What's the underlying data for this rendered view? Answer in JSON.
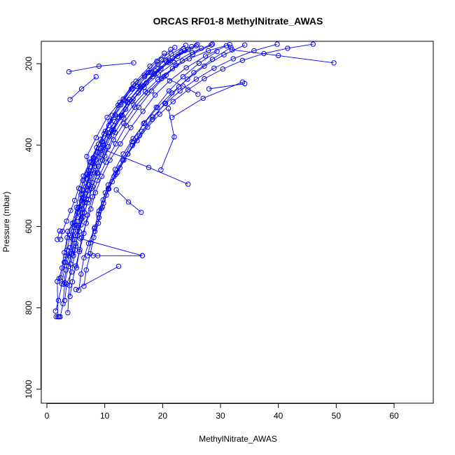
{
  "chart_data": {
    "type": "line",
    "title": "ORCAS RF01-8 MethylNitrate_AWAS",
    "xlabel": "MethylNitrate_AWAS",
    "ylabel": "Pressure (mbar)",
    "xlim": [
      0,
      66
    ],
    "ylim": [
      1037,
      150
    ],
    "y_reversed": true,
    "x_ticks": [
      0,
      10,
      20,
      30,
      40,
      50,
      60
    ],
    "y_ticks": [
      200,
      400,
      600,
      800,
      1000
    ],
    "grid": false,
    "legend": "none",
    "colors": {
      "series": "#0000ff",
      "axis": "#000000",
      "background": "#ffffff"
    },
    "series": [
      {
        "x": [
          1.9,
          1.8,
          2.4,
          3.3,
          3.6,
          5.2,
          5.9,
          7.2,
          6.9,
          8.5,
          10.4,
          12.6,
          14.9,
          17.5,
          19.8,
          22.1
        ],
        "y": [
          822,
          735,
          726,
          672,
          612,
          578,
          521,
          462,
          428,
          382,
          332,
          295,
          250,
          222,
          190,
          160
        ]
      },
      {
        "x": [
          2.3,
          2.8,
          3.1,
          4.2,
          4.7,
          5.6,
          6.2,
          7.6,
          8.9,
          10.7,
          12.3,
          14.8,
          16.9,
          19.2,
          21.5,
          24.0
        ],
        "y": [
          822,
          790,
          738,
          668,
          603,
          552,
          487,
          442,
          398,
          352,
          302,
          262,
          232,
          202,
          176,
          155
        ]
      },
      {
        "x": [
          3.6,
          3.9,
          4.1,
          5.0,
          5.5,
          6.3,
          7.4,
          8.1,
          9.6,
          11.7,
          13.9,
          16.1,
          18.4,
          20.7,
          23.2,
          26.0
        ],
        "y": [
          812,
          745,
          692,
          648,
          598,
          531,
          476,
          432,
          392,
          342,
          296,
          256,
          226,
          196,
          171,
          153
        ]
      },
      {
        "x": [
          1.5,
          2.0,
          2.6,
          3.2,
          4.0,
          4.6,
          5.4,
          6.6,
          7.7,
          8.8,
          9.9,
          11.3,
          13.2,
          15.4,
          17.8,
          20.3
        ],
        "y": [
          808,
          782,
          741,
          688,
          652,
          611,
          564,
          518,
          463,
          418,
          372,
          327,
          287,
          243,
          206,
          174
        ]
      },
      {
        "x": [
          3.1,
          3.4,
          4.3,
          4.9,
          5.3,
          6.0,
          6.5,
          7.3,
          8.3,
          9.7,
          11.5,
          13.6,
          15.8,
          18.3,
          21.0,
          23.8
        ],
        "y": [
          782,
          742,
          712,
          658,
          622,
          582,
          542,
          497,
          452,
          407,
          362,
          312,
          272,
          232,
          197,
          168
        ]
      },
      {
        "x": [
          2.1,
          2.6,
          3.0,
          3.5,
          4.4,
          5.1,
          5.8,
          6.9,
          8.0,
          9.3,
          10.9,
          12.8,
          14.6,
          16.8,
          19.0,
          21.4
        ],
        "y": [
          728,
          702,
          664,
          627,
          592,
          553,
          508,
          472,
          431,
          386,
          341,
          301,
          262,
          228,
          194,
          165
        ]
      },
      {
        "x": [
          4.0,
          4.4,
          5.0,
          5.7,
          6.4,
          7.0,
          7.9,
          8.7,
          10.2,
          11.9,
          13.7,
          15.9,
          18.1,
          20.6,
          23.4,
          26.7
        ],
        "y": [
          772,
          736,
          697,
          657,
          617,
          572,
          527,
          487,
          442,
          397,
          352,
          307,
          267,
          228,
          193,
          162
        ]
      },
      {
        "x": [
          2.9,
          3.3,
          3.8,
          4.5,
          5.2,
          6.1,
          7.1,
          8.2,
          9.4,
          10.8,
          12.5,
          14.3,
          16.4,
          18.8,
          21.7,
          25.0
        ],
        "y": [
          742,
          707,
          672,
          632,
          597,
          557,
          512,
          468,
          423,
          378,
          333,
          288,
          253,
          218,
          186,
          158
        ]
      },
      {
        "x": [
          5.5,
          5.9,
          6.4,
          7.2,
          8.3,
          9.0,
          10.1,
          11.6,
          13.1,
          14.7,
          16.7,
          18.9,
          21.1,
          23.5,
          26.3,
          29.4
        ],
        "y": [
          757,
          717,
          677,
          642,
          602,
          562,
          517,
          477,
          437,
          392,
          347,
          307,
          267,
          232,
          199,
          170
        ]
      },
      {
        "x": [
          3.8,
          4.3,
          4.8,
          5.4,
          6.1,
          6.8,
          7.8,
          8.9,
          10.0,
          11.4,
          13.0,
          14.9,
          17.2,
          19.7,
          22.6,
          25.8
        ],
        "y": [
          698,
          667,
          632,
          602,
          567,
          532,
          492,
          452,
          412,
          367,
          327,
          287,
          247,
          212,
          182,
          156
        ]
      },
      {
        "x": [
          6.4,
          6.8,
          7.5,
          8.1,
          8.9,
          9.6,
          10.6,
          12.2,
          14.0,
          16.0,
          18.2,
          20.4,
          22.8,
          25.4,
          28.6,
          31.8
        ],
        "y": [
          747,
          707,
          667,
          627,
          592,
          552,
          507,
          467,
          422,
          377,
          337,
          297,
          257,
          222,
          189,
          160
        ]
      },
      {
        "x": [
          2.4,
          2.7,
          3.4,
          4.1,
          4.8,
          5.5,
          6.3,
          7.4,
          8.6,
          10.1,
          11.8,
          13.5,
          15.6,
          17.9,
          20.5,
          23.6
        ],
        "y": [
          632,
          612,
          587,
          561,
          536,
          506,
          476,
          441,
          406,
          366,
          326,
          291,
          256,
          221,
          191,
          163
        ]
      },
      {
        "x": [
          4.6,
          5.0,
          5.6,
          6.2,
          7.0,
          7.7,
          8.8,
          10.0,
          11.5,
          13.3,
          15.2,
          17.4,
          19.8,
          22.3,
          25.2,
          28.4
        ],
        "y": [
          672,
          642,
          612,
          577,
          542,
          507,
          467,
          427,
          387,
          347,
          307,
          272,
          237,
          204,
          177,
          154
        ]
      },
      {
        "x": [
          5.1,
          5.6,
          6.0,
          6.8,
          7.6,
          8.4,
          9.5,
          10.9,
          12.7,
          14.5,
          16.6,
          18.7,
          21.2,
          24.1,
          27.4,
          31.0
        ],
        "y": [
          702,
          662,
          627,
          592,
          557,
          517,
          477,
          437,
          397,
          357,
          317,
          277,
          242,
          210,
          181,
          156
        ]
      },
      {
        "x": [
          3.0,
          3.5,
          4.0,
          4.7,
          5.4,
          6.2,
          7.0,
          8.0,
          9.3,
          10.6,
          12.2,
          14.0,
          16.2,
          18.6,
          21.3,
          24.4
        ],
        "y": [
          688,
          658,
          622,
          590,
          555,
          520,
          484,
          446,
          408,
          370,
          331,
          294,
          258,
          224,
          193,
          165
        ]
      },
      {
        "x": [
          7.0,
          7.6,
          8.2,
          8.9,
          9.7,
          10.6,
          11.8,
          13.2,
          14.9,
          16.9,
          19.1,
          21.6,
          24.3,
          27.2,
          30.6,
          34.2
        ],
        "y": [
          672,
          640,
          605,
          570,
          535,
          498,
          460,
          422,
          384,
          345,
          308,
          272,
          238,
          206,
          178,
          154
        ]
      },
      {
        "x": [
          4.2,
          4.9,
          5.3,
          6.0,
          6.7,
          7.5,
          8.5,
          9.8,
          11.2,
          12.8,
          14.7,
          16.8,
          19.3,
          22.0,
          25.1,
          28.6
        ],
        "y": [
          627,
          597,
          567,
          537,
          503,
          470,
          436,
          400,
          364,
          327,
          292,
          258,
          226,
          197,
          172,
          152
        ]
      },
      {
        "x": [
          8.3,
          9.0,
          9.8,
          10.7,
          11.9,
          13.3,
          14.8,
          16.4,
          18.3,
          20.5,
          23.0,
          25.8,
          28.9,
          32.2,
          35.8,
          39.8
        ],
        "y": [
          612,
          578,
          543,
          508,
          472,
          437,
          401,
          366,
          331,
          298,
          267,
          238,
          211,
          188,
          168,
          152
        ]
      },
      {
        "x": [
          5.9,
          6.5,
          7.2,
          7.9,
          8.7,
          9.6,
          10.6,
          11.8,
          13.3,
          15.0,
          17.0,
          19.2,
          21.7,
          24.6,
          27.9,
          31.6
        ],
        "y": [
          596,
          566,
          534,
          502,
          470,
          437,
          404,
          369,
          334,
          301,
          269,
          239,
          212,
          188,
          168,
          153
        ]
      },
      {
        "x": [
          9.4,
          10.3,
          11.3,
          12.6,
          14.0,
          15.6,
          17.4,
          19.5,
          21.8,
          24.4,
          27.2,
          30.4,
          33.8,
          37.5,
          41.6,
          46.0
        ],
        "y": [
          556,
          523,
          490,
          456,
          422,
          389,
          356,
          324,
          293,
          264,
          237,
          213,
          192,
          175,
          162,
          152
        ]
      },
      {
        "x": [
          1.6,
          2.1
        ],
        "y": [
          822,
          822
        ]
      },
      {
        "x": [
          1.8,
          2.2
        ],
        "y": [
          632,
          611
        ]
      },
      {
        "x": [
          16.5,
          8.8,
          8.0
        ],
        "y": [
          672,
          672,
          672
        ]
      },
      {
        "x": [
          16.5,
          5.8
        ],
        "y": [
          672,
          630
        ]
      },
      {
        "x": [
          12.4,
          5.0
        ],
        "y": [
          698,
          755
        ]
      },
      {
        "x": [
          24.4,
          17.6,
          10.0
        ],
        "y": [
          496,
          455,
          412
        ]
      },
      {
        "x": [
          33.8,
          27.0,
          21.6
        ],
        "y": [
          245,
          285,
          332
        ]
      },
      {
        "x": [
          34.2,
          28.0
        ],
        "y": [
          249,
          262
        ]
      },
      {
        "x": [
          49.6,
          40.0,
          32.0
        ],
        "y": [
          198,
          180,
          166
        ]
      },
      {
        "x": [
          3.8,
          9.0,
          15.0
        ],
        "y": [
          220,
          206,
          198
        ]
      },
      {
        "x": [
          4.0,
          6.0,
          8.5
        ],
        "y": [
          288,
          262,
          232
        ]
      },
      {
        "x": [
          16.3,
          14.1,
          12.0
        ],
        "y": [
          565,
          540,
          510
        ]
      },
      {
        "x": [
          19.7,
          22.0,
          21.0
        ],
        "y": [
          461,
          380,
          310
        ]
      },
      {
        "x": [
          26.1,
          23.5,
          20.2
        ],
        "y": [
          275,
          255,
          232
        ]
      }
    ]
  }
}
